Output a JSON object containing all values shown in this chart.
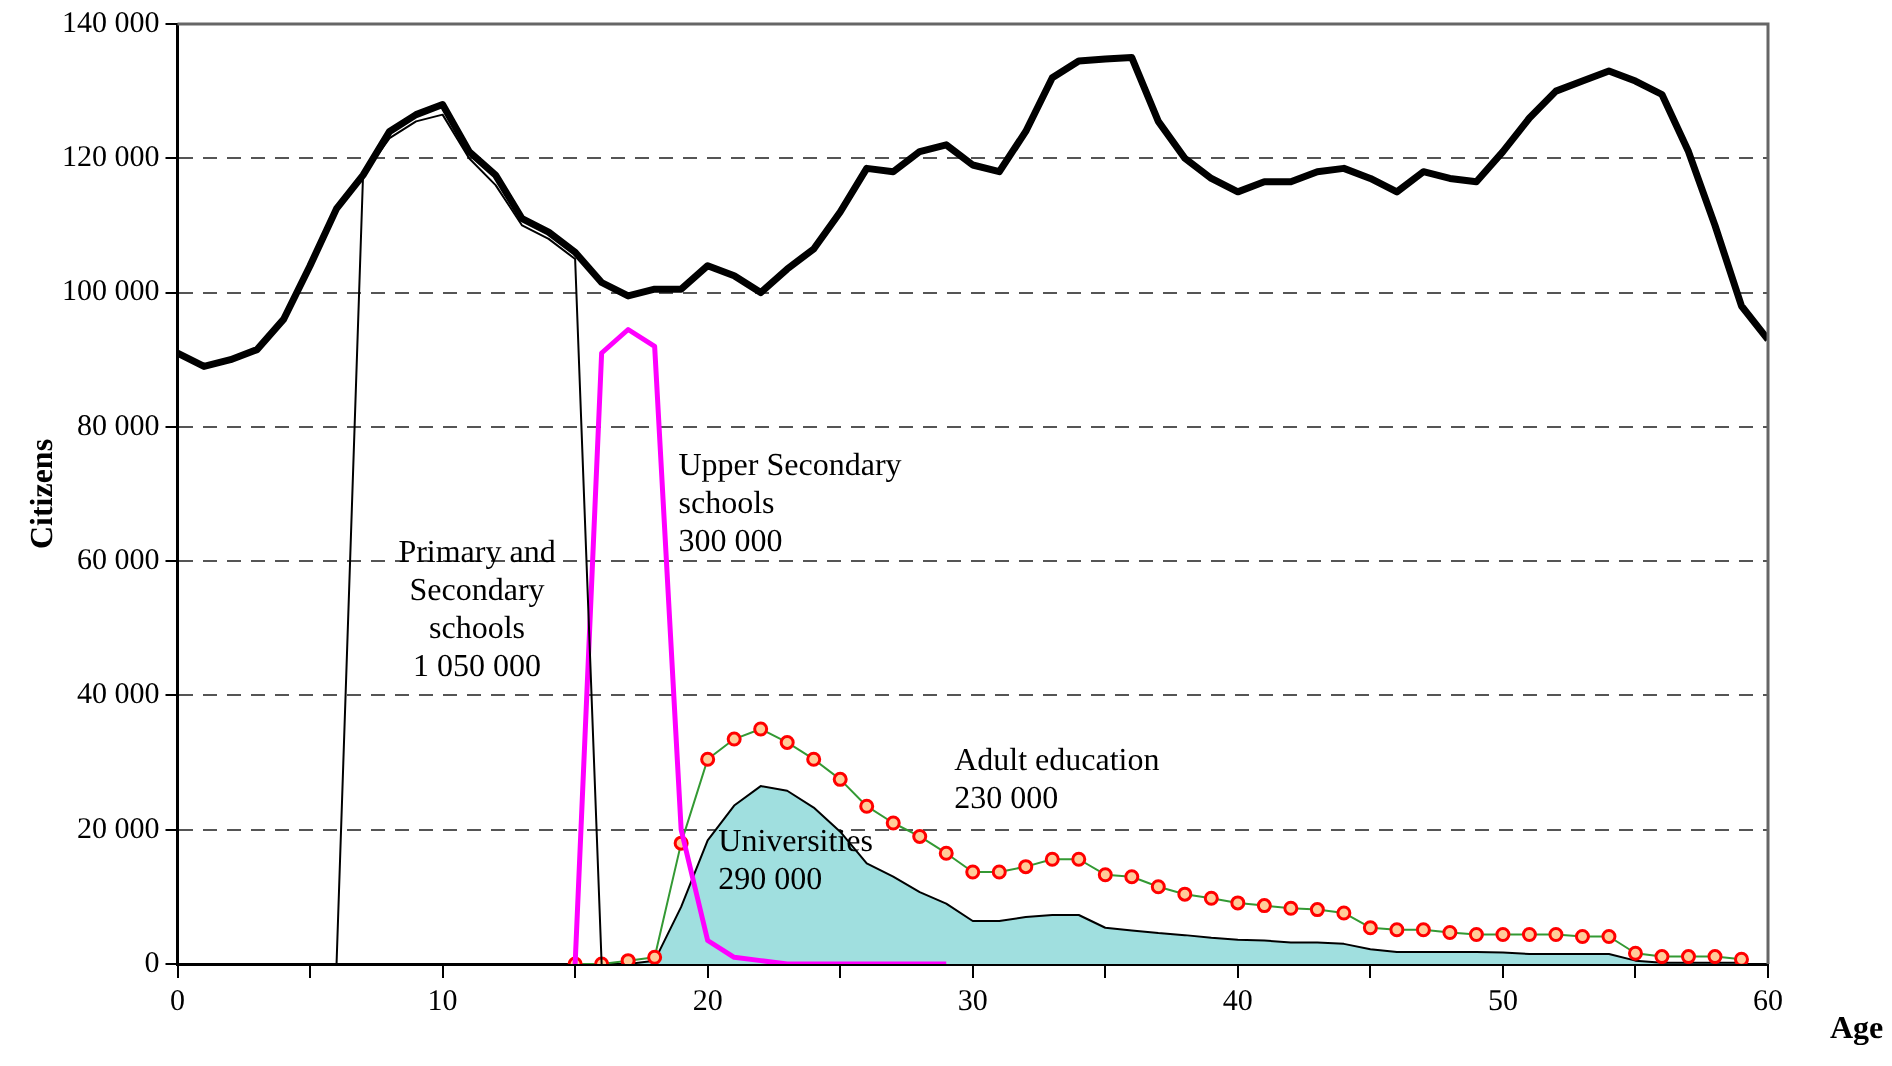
{
  "chart_data": {
    "type": "line",
    "xlabel": "Age",
    "ylabel": "Citizens",
    "x": [
      0,
      1,
      2,
      3,
      4,
      5,
      6,
      7,
      8,
      9,
      10,
      11,
      12,
      13,
      14,
      15,
      16,
      17,
      18,
      19,
      20,
      21,
      22,
      23,
      24,
      25,
      26,
      27,
      28,
      29,
      30,
      31,
      32,
      33,
      34,
      35,
      36,
      37,
      38,
      39,
      40,
      41,
      42,
      43,
      44,
      45,
      46,
      47,
      48,
      49,
      50,
      51,
      52,
      53,
      54,
      55,
      56,
      57,
      58,
      59,
      60
    ],
    "xlim": [
      0,
      60
    ],
    "xticks": [
      0,
      {
        "value": 5,
        "label": null
      },
      10,
      {
        "value": 15,
        "label": null
      },
      20,
      {
        "value": 25,
        "label": null
      },
      30,
      {
        "value": 35,
        "label": null
      },
      40,
      {
        "value": 45,
        "label": null
      },
      50,
      {
        "value": 55,
        "label": null
      },
      60
    ],
    "ylim": [
      0,
      140000
    ],
    "yticks": [
      0,
      {
        "value": 20000,
        "label": "20 000"
      },
      {
        "value": 40000,
        "label": "40 000"
      },
      {
        "value": 60000,
        "label": "60 000"
      },
      {
        "value": 80000,
        "label": "80 000"
      },
      {
        "value": 100000,
        "label": "100 000"
      },
      {
        "value": 120000,
        "label": "120 000"
      },
      {
        "value": 140000,
        "label": "140 000"
      }
    ],
    "grid": "y",
    "legend": false,
    "marker": "none",
    "line_style": "solid",
    "series": [
      {
        "type": "area",
        "color": "#a0dfdf",
        "values": [
          null,
          null,
          null,
          null,
          null,
          null,
          null,
          null,
          null,
          null,
          null,
          null,
          null,
          null,
          null,
          null,
          null,
          0,
          500,
          8500,
          18400,
          23600,
          26500,
          25800,
          23300,
          19700,
          15000,
          13000,
          10700,
          9000,
          6400,
          6400,
          7000,
          7300,
          7300,
          5400,
          5000,
          4600,
          4300,
          3900,
          3600,
          3500,
          3200,
          3200,
          3000,
          2200,
          1800,
          1800,
          1800,
          1800,
          1700,
          1500,
          1500,
          1500,
          1500,
          500,
          200,
          200,
          200,
          200,
          null
        ]
      },
      {
        "color": "#000000",
        "values": [
          91000,
          89000,
          90000,
          91500,
          96000,
          104000,
          112500,
          117500,
          124000,
          126500,
          128000,
          121000,
          117500,
          111000,
          109000,
          106000,
          101500,
          99500,
          100500,
          100500,
          104000,
          102500,
          100000,
          103500,
          106500,
          112000,
          118500,
          118000,
          121000,
          122000,
          119000,
          118000,
          124000,
          132000,
          134500,
          134800,
          135000,
          125500,
          120000,
          117000,
          115000,
          116500,
          116500,
          118000,
          118500,
          117000,
          115000,
          118000,
          117000,
          116500,
          121000,
          126000,
          130000,
          131500,
          133000,
          131500,
          129500,
          121000,
          110000,
          98000,
          93000
        ]
      },
      {
        "color": "#000000",
        "values": [
          0,
          0,
          0,
          0,
          0,
          0,
          0,
          117500,
          123000,
          125500,
          126500,
          120000,
          116000,
          110000,
          108000,
          105000,
          0,
          null,
          null,
          null,
          null,
          null,
          null,
          null,
          null,
          null,
          null,
          null,
          null,
          null,
          null,
          null,
          null,
          null,
          null,
          null,
          null,
          null,
          null,
          null,
          null,
          null,
          null,
          null,
          null,
          null,
          null,
          null,
          null,
          null,
          null,
          null,
          null,
          null,
          null,
          null,
          null,
          null,
          null,
          null,
          null
        ]
      },
      {
        "color": "#ff00ff",
        "values": [
          null,
          null,
          null,
          null,
          null,
          null,
          null,
          null,
          null,
          null,
          null,
          null,
          null,
          null,
          null,
          0,
          91000,
          94500,
          92000,
          20000,
          3500,
          1000,
          500,
          0,
          0,
          0,
          0,
          0,
          0,
          0,
          null,
          null,
          null,
          null,
          null,
          null,
          null,
          null,
          null,
          null,
          null,
          null,
          null,
          null,
          null,
          null,
          null,
          null,
          null,
          null,
          null,
          null,
          null,
          null,
          null,
          null,
          null,
          null,
          null,
          null,
          null
        ]
      },
      {
        "color": "#339933",
        "marker": "circle",
        "values": [
          null,
          null,
          null,
          null,
          null,
          null,
          null,
          null,
          null,
          null,
          null,
          null,
          null,
          null,
          null,
          0,
          0,
          500,
          1000,
          18000,
          30500,
          33500,
          35000,
          33000,
          30500,
          27500,
          23500,
          21000,
          19000,
          16500,
          13700,
          13700,
          14500,
          15600,
          15600,
          13300,
          13000,
          11500,
          10400,
          9800,
          9100,
          8700,
          8300,
          8100,
          7600,
          5400,
          5100,
          5100,
          4700,
          4400,
          4400,
          4400,
          4400,
          4100,
          4100,
          1600,
          1100,
          1100,
          1100,
          700,
          null
        ]
      }
    ],
    "annotations": [
      "Primary and\nSecondary\nschools\n1 050 000",
      "Upper Secondary\nschools\n300 000",
      "Adult education\n230 000",
      "Universities\n290 000"
    ]
  }
}
